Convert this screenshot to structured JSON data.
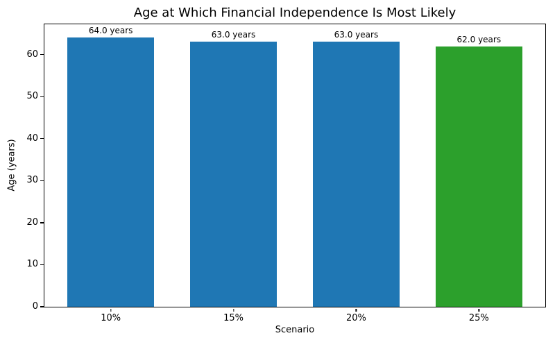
{
  "chart_data": {
    "type": "bar",
    "title": "Age at Which Financial Independence Is Most Likely",
    "xlabel": "Scenario",
    "ylabel": "Age (years)",
    "categories": [
      "10%",
      "15%",
      "20%",
      "25%"
    ],
    "values": [
      64.0,
      63.0,
      63.0,
      62.0
    ],
    "bar_labels": [
      "64.0 years",
      "63.0 years",
      "63.0 years",
      "62.0 years"
    ],
    "bar_colors": [
      "#1f77b4",
      "#1f77b4",
      "#1f77b4",
      "#2ca02c"
    ],
    "ylim": [
      0,
      67.2
    ],
    "yticks": [
      0,
      10,
      20,
      30,
      40,
      50,
      60
    ],
    "grid": false,
    "legend": "none",
    "spines": "full-box"
  }
}
